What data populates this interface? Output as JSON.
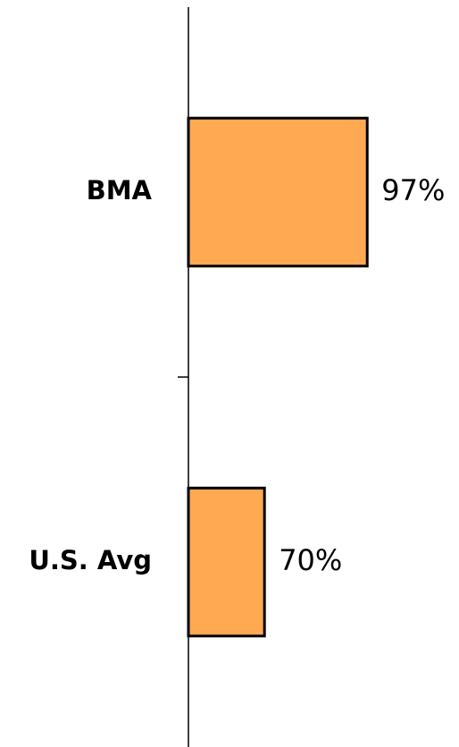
{
  "chart_data": {
    "type": "barh",
    "categories": [
      "BMA",
      "U.S. Avg"
    ],
    "values": [
      97,
      70
    ],
    "value_labels": [
      "97%",
      "70%"
    ],
    "color": "#ffa952",
    "xlim": [
      50,
      100
    ]
  }
}
